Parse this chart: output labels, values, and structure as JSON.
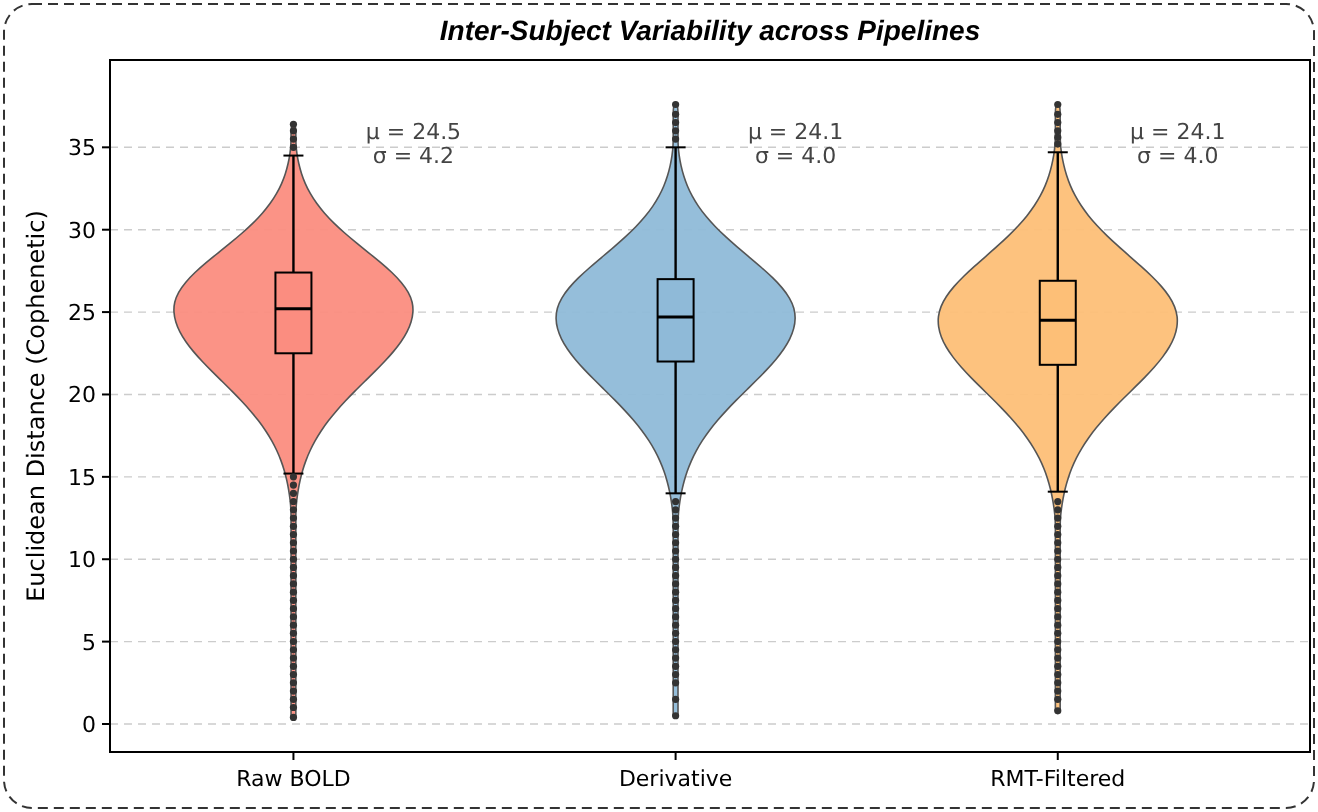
{
  "chart_data": {
    "type": "box",
    "title": "Inter-Subject Variability across Pipelines",
    "ylabel": "Euclidean Distance (Cophenetic)",
    "categories": [
      "Raw BOLD",
      "Derivative",
      "RMT-Filtered"
    ],
    "colors": [
      "#fb8d80",
      "#8fbad8",
      "#fdbf77"
    ],
    "boxes": [
      {
        "low": 15.2,
        "q1": 22.5,
        "median": 25.2,
        "q3": 27.4,
        "high": 34.5,
        "outliers": [
          0.4,
          1,
          1.5,
          2,
          2.5,
          3,
          3.5,
          4,
          4.5,
          5,
          5.5,
          6,
          6.5,
          7,
          7.5,
          8,
          8.5,
          9,
          9.5,
          10,
          10.5,
          11,
          11.5,
          12,
          12.5,
          13,
          13.5,
          14,
          14.5,
          15,
          35,
          35.5,
          36,
          36.4
        ]
      },
      {
        "low": 14,
        "q1": 22,
        "median": 24.7,
        "q3": 27,
        "high": 35,
        "outliers": [
          0.5,
          1.5,
          2.5,
          3,
          3.5,
          4,
          4.5,
          5,
          5.5,
          6,
          6.5,
          7,
          7.5,
          8,
          8.5,
          9,
          9.5,
          10,
          10.5,
          11,
          11.5,
          12,
          12.5,
          13,
          13.5,
          35.5,
          36,
          36.5,
          37,
          37.6
        ]
      },
      {
        "low": 14.1,
        "q1": 21.8,
        "median": 24.5,
        "q3": 26.9,
        "high": 34.7,
        "outliers": [
          0.8,
          1.5,
          2,
          2.5,
          3,
          3.5,
          4,
          4.5,
          5,
          5.5,
          6,
          6.5,
          7,
          7.5,
          8,
          8.5,
          9,
          9.5,
          10,
          10.5,
          11,
          11.5,
          12,
          12.5,
          13,
          13.5,
          35.2,
          35.6,
          36,
          36.5,
          37,
          37.6
        ]
      }
    ],
    "annotations": [
      "μ = 24.5\nσ = 4.2",
      "μ = 24.1\nσ = 4.0",
      "μ = 24.1\nσ = 4.0"
    ],
    "ylim": [
      -1.7,
      40.3
    ],
    "yticks": [
      0,
      5,
      10,
      15,
      20,
      25,
      30,
      35
    ],
    "grid": "y"
  }
}
